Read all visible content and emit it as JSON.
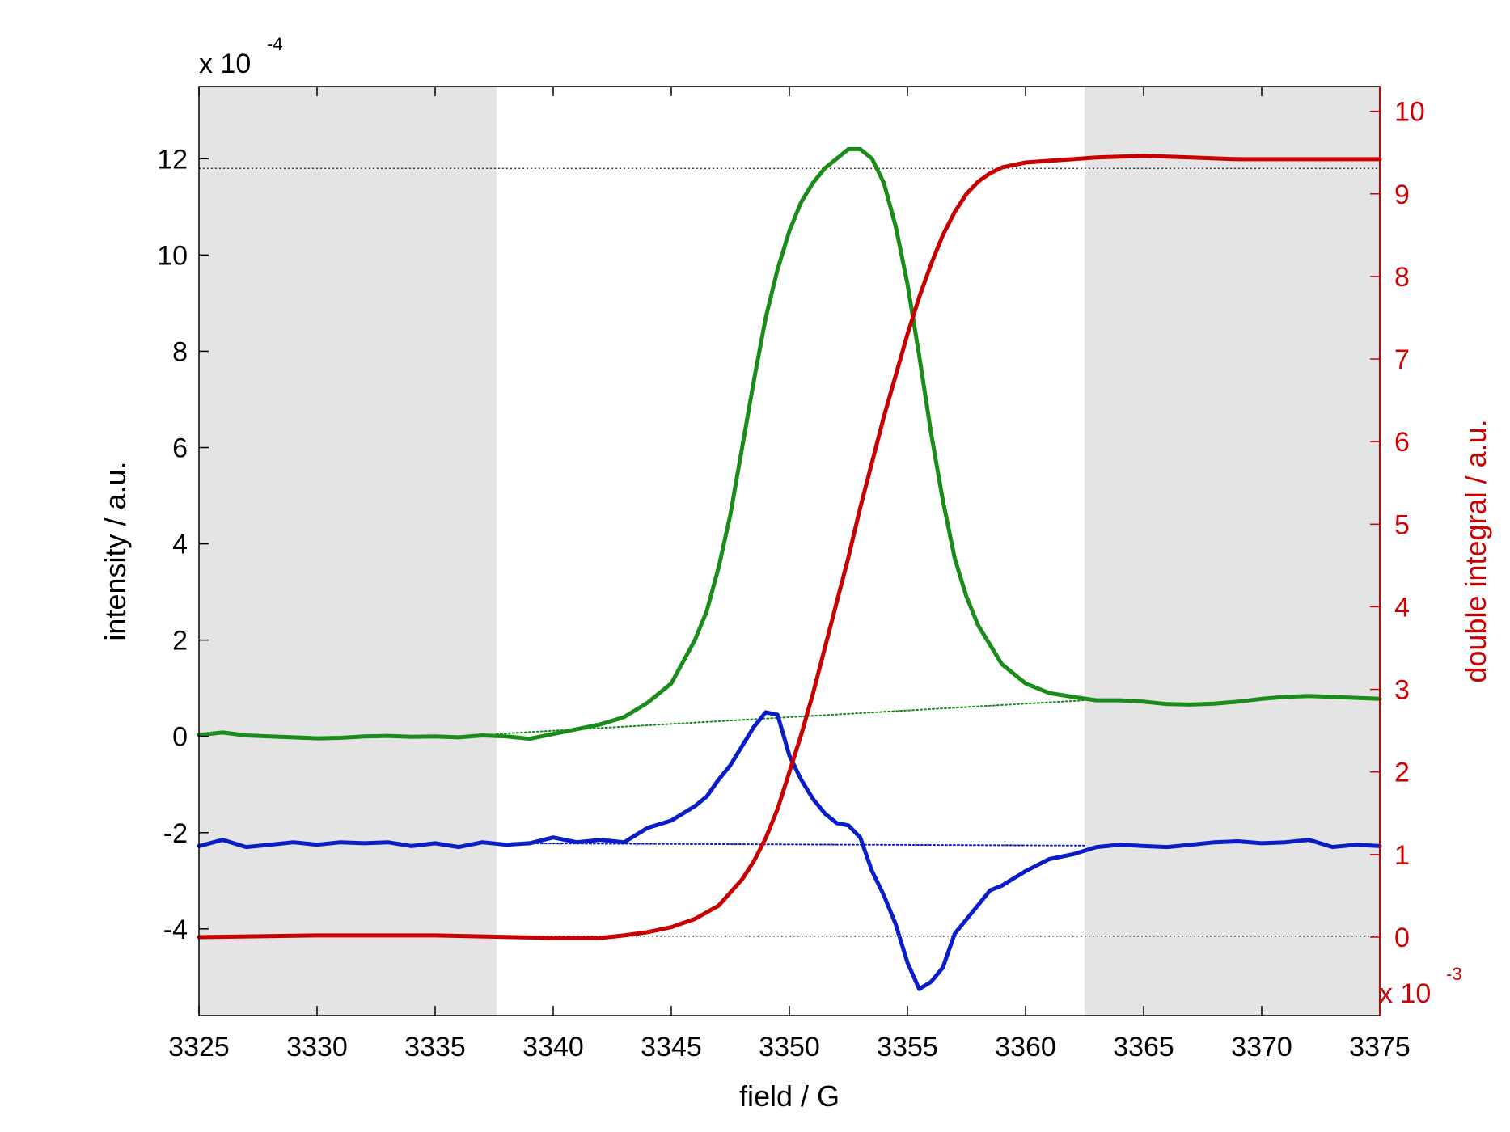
{
  "chart_data": {
    "type": "line",
    "xlabel": "field / G",
    "ylabel_left": "intensity / a.u.",
    "ylabel_right": "double integral / a.u.",
    "exponent_left": {
      "base": "x 10",
      "power": "-4"
    },
    "exponent_right": {
      "base": "x 10",
      "power": "-3"
    },
    "xlim": [
      3325,
      3375
    ],
    "ylim_left": [
      -5.8,
      13.5
    ],
    "ylim_right": [
      -0.95,
      10.3
    ],
    "x_ticks": [
      3325,
      3330,
      3335,
      3340,
      3345,
      3350,
      3355,
      3360,
      3365,
      3370,
      3375
    ],
    "y_left_ticks": [
      -4,
      -2,
      0,
      2,
      4,
      6,
      8,
      10,
      12
    ],
    "y_right_ticks": [
      0,
      1,
      2,
      3,
      4,
      5,
      6,
      7,
      8,
      9,
      10
    ],
    "shaded_regions": [
      [
        3325,
        3337.6
      ],
      [
        3362.5,
        3375
      ]
    ],
    "reference_lines_left": [
      11.8,
      -4.15
    ],
    "colors": {
      "green": "#1a8c1a",
      "blue": "#0a1ec8",
      "red": "#c80000",
      "right_axis": "#cc0000",
      "shade": "#e4e4e4"
    },
    "series": [
      {
        "axis": "left",
        "color": "green",
        "style": "solid",
        "x": [
          3325,
          3326,
          3327,
          3328,
          3329,
          3330,
          3331,
          3332,
          3333,
          3334,
          3335,
          3336,
          3337,
          3338,
          3339,
          3340,
          3341,
          3342,
          3343,
          3344,
          3345,
          3346,
          3346.5,
          3347,
          3347.5,
          3348,
          3348.5,
          3349,
          3349.5,
          3350,
          3350.5,
          3351,
          3351.5,
          3352,
          3352.5,
          3353,
          3353.5,
          3354,
          3354.5,
          3355,
          3355.5,
          3356,
          3356.5,
          3357,
          3357.5,
          3358,
          3358.5,
          3359,
          3360,
          3361,
          3362,
          3363,
          3364,
          3365,
          3366,
          3367,
          3368,
          3369,
          3370,
          3371,
          3372,
          3373,
          3374,
          3375
        ],
        "y": [
          0.03,
          0.08,
          0.02,
          0.0,
          -0.02,
          -0.04,
          -0.03,
          0.0,
          0.01,
          -0.01,
          0.0,
          -0.02,
          0.02,
          0.0,
          -0.05,
          0.05,
          0.15,
          0.25,
          0.4,
          0.7,
          1.1,
          2.0,
          2.6,
          3.5,
          4.6,
          6.0,
          7.4,
          8.7,
          9.7,
          10.5,
          11.1,
          11.5,
          11.8,
          12.0,
          12.2,
          12.2,
          12.0,
          11.5,
          10.6,
          9.4,
          7.9,
          6.3,
          4.9,
          3.7,
          2.9,
          2.3,
          1.9,
          1.5,
          1.1,
          0.9,
          0.82,
          0.75,
          0.75,
          0.72,
          0.67,
          0.66,
          0.68,
          0.72,
          0.78,
          0.82,
          0.84,
          0.82,
          0.8,
          0.78
        ]
      },
      {
        "axis": "left",
        "color": "green",
        "style": "dotted",
        "x": [
          3337.6,
          3362.5
        ],
        "y": [
          0.05,
          0.75
        ]
      },
      {
        "axis": "left",
        "color": "blue",
        "style": "solid",
        "x": [
          3325,
          3326,
          3327,
          3328,
          3329,
          3330,
          3331,
          3332,
          3333,
          3334,
          3335,
          3336,
          3337,
          3338,
          3339,
          3340,
          3341,
          3342,
          3343,
          3344,
          3345,
          3346,
          3346.5,
          3347,
          3347.5,
          3348,
          3348.5,
          3349,
          3349.5,
          3350,
          3350.5,
          3351,
          3351.5,
          3352,
          3352.5,
          3353,
          3353.5,
          3354,
          3354.5,
          3355,
          3355.5,
          3356,
          3356.5,
          3357,
          3357.5,
          3358,
          3358.5,
          3359,
          3360,
          3361,
          3362,
          3363,
          3364,
          3365,
          3366,
          3367,
          3368,
          3369,
          3370,
          3371,
          3372,
          3373,
          3374,
          3375
        ],
        "y": [
          -2.28,
          -2.15,
          -2.3,
          -2.25,
          -2.2,
          -2.25,
          -2.2,
          -2.22,
          -2.2,
          -2.28,
          -2.22,
          -2.3,
          -2.2,
          -2.25,
          -2.22,
          -2.1,
          -2.2,
          -2.15,
          -2.2,
          -1.9,
          -1.75,
          -1.45,
          -1.25,
          -0.9,
          -0.6,
          -0.2,
          0.2,
          0.5,
          0.45,
          -0.4,
          -0.9,
          -1.3,
          -1.6,
          -1.8,
          -1.85,
          -2.1,
          -2.8,
          -3.3,
          -3.9,
          -4.7,
          -5.25,
          -5.1,
          -4.8,
          -4.1,
          -3.8,
          -3.5,
          -3.2,
          -3.1,
          -2.8,
          -2.55,
          -2.45,
          -2.3,
          -2.25,
          -2.28,
          -2.3,
          -2.25,
          -2.2,
          -2.18,
          -2.22,
          -2.2,
          -2.15,
          -2.3,
          -2.25,
          -2.28
        ]
      },
      {
        "axis": "left",
        "color": "blue",
        "style": "dotted",
        "x": [
          3337.6,
          3362.5
        ],
        "y": [
          -2.22,
          -2.27
        ]
      },
      {
        "axis": "right",
        "color": "red",
        "style": "solid",
        "x": [
          3325,
          3330,
          3335,
          3340,
          3342,
          3343,
          3344,
          3345,
          3346,
          3347,
          3348,
          3348.5,
          3349,
          3349.5,
          3350,
          3350.5,
          3351,
          3351.5,
          3352,
          3352.5,
          3353,
          3353.5,
          3354,
          3354.5,
          3355,
          3355.5,
          3356,
          3356.5,
          3357,
          3357.5,
          3358,
          3358.5,
          3359,
          3360,
          3361,
          3362,
          3363,
          3364,
          3365,
          3366,
          3367,
          3368,
          3369,
          3370,
          3371,
          3372,
          3373,
          3374,
          3375
        ],
        "y": [
          0.0,
          0.02,
          0.02,
          -0.01,
          -0.01,
          0.02,
          0.06,
          0.12,
          0.22,
          0.38,
          0.7,
          0.92,
          1.2,
          1.55,
          2.0,
          2.45,
          2.95,
          3.5,
          4.05,
          4.6,
          5.2,
          5.75,
          6.3,
          6.8,
          7.3,
          7.75,
          8.15,
          8.5,
          8.78,
          9.0,
          9.15,
          9.25,
          9.32,
          9.38,
          9.4,
          9.42,
          9.44,
          9.45,
          9.46,
          9.45,
          9.44,
          9.43,
          9.42,
          9.42,
          9.42,
          9.42,
          9.42,
          9.42,
          9.42
        ]
      }
    ]
  }
}
